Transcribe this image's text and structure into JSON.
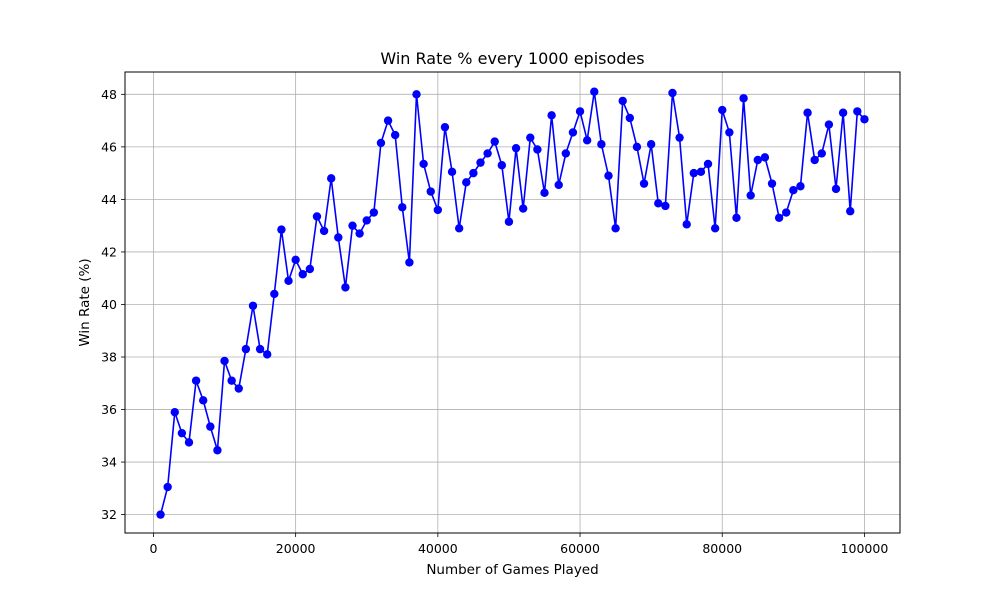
{
  "chart_data": {
    "type": "line",
    "title": "Win Rate % every 1000 episodes",
    "xlabel": "Number of Games Played",
    "ylabel": "Win Rate (%)",
    "xlim": [
      -4000,
      105000
    ],
    "ylim": [
      31.3,
      48.85
    ],
    "x_ticks": [
      0,
      20000,
      40000,
      60000,
      80000,
      100000
    ],
    "x_tick_labels": [
      "0",
      "20000",
      "40000",
      "60000",
      "80000",
      "100000"
    ],
    "y_ticks": [
      32,
      34,
      36,
      38,
      40,
      42,
      44,
      46,
      48
    ],
    "y_tick_labels": [
      "32",
      "34",
      "36",
      "38",
      "40",
      "42",
      "44",
      "46",
      "48"
    ],
    "grid": true,
    "legend": "none",
    "series": [
      {
        "color": "#0000ff",
        "marker": "circle",
        "x": [
          1000,
          2000,
          3000,
          4000,
          5000,
          6000,
          7000,
          8000,
          9000,
          10000,
          11000,
          12000,
          13000,
          14000,
          15000,
          16000,
          17000,
          18000,
          19000,
          20000,
          21000,
          22000,
          23000,
          24000,
          25000,
          26000,
          27000,
          28000,
          29000,
          30000,
          31000,
          32000,
          33000,
          34000,
          35000,
          36000,
          37000,
          38000,
          39000,
          40000,
          41000,
          42000,
          43000,
          44000,
          45000,
          46000,
          47000,
          48000,
          49000,
          50000,
          51000,
          52000,
          53000,
          54000,
          55000,
          56000,
          57000,
          58000,
          59000,
          60000,
          61000,
          62000,
          63000,
          64000,
          65000,
          66000,
          67000,
          68000,
          69000,
          70000,
          71000,
          72000,
          73000,
          74000,
          75000,
          76000,
          77000,
          78000,
          79000,
          80000,
          81000,
          82000,
          83000,
          84000,
          85000,
          86000,
          87000,
          88000,
          89000,
          90000,
          91000,
          92000,
          93000,
          94000,
          95000,
          96000,
          97000,
          98000,
          99000,
          100000
        ],
        "values": [
          32.0,
          33.05,
          35.9,
          35.1,
          34.75,
          37.1,
          36.35,
          35.35,
          34.45,
          37.85,
          37.1,
          36.8,
          38.3,
          39.95,
          38.3,
          38.1,
          40.4,
          42.85,
          40.9,
          41.7,
          41.15,
          41.35,
          43.35,
          42.8,
          44.8,
          42.55,
          40.65,
          43.0,
          42.7,
          43.2,
          43.5,
          46.15,
          47.0,
          46.45,
          43.7,
          41.6,
          48.0,
          45.35,
          44.3,
          43.6,
          46.75,
          45.05,
          42.9,
          44.65,
          45.0,
          45.4,
          45.75,
          46.2,
          45.3,
          43.15,
          45.95,
          43.65,
          46.35,
          45.9,
          44.25,
          47.2,
          44.55,
          45.75,
          46.55,
          47.35,
          46.25,
          48.1,
          46.1,
          44.9,
          42.9,
          47.75,
          47.1,
          46.0,
          44.6,
          46.1,
          43.85,
          43.75,
          48.05,
          46.35,
          43.05,
          45.0,
          45.05,
          45.35,
          42.9,
          47.4,
          46.55,
          43.3,
          47.85,
          44.15,
          45.5,
          45.6,
          44.6,
          43.3,
          43.5,
          44.35,
          44.5,
          47.3,
          45.5,
          45.75,
          46.85,
          44.4,
          47.3,
          43.55,
          47.35,
          47.05
        ]
      }
    ]
  }
}
